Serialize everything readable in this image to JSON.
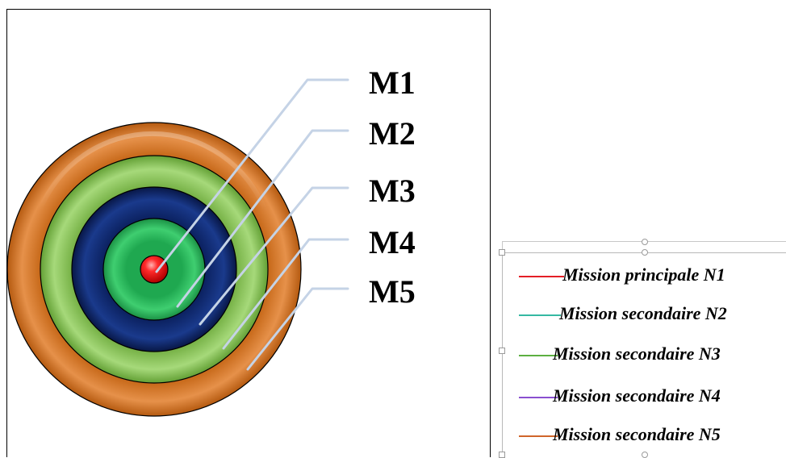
{
  "rings": [
    {
      "label": "M1",
      "color": "#e41e26",
      "name": "ring-m1"
    },
    {
      "label": "M2",
      "color": "#22a84c",
      "name": "ring-m2"
    },
    {
      "label": "M3",
      "color": "#0b2260",
      "name": "ring-m3"
    },
    {
      "label": "M4",
      "color": "#74b043",
      "name": "ring-m4"
    },
    {
      "label": "M5",
      "color": "#c4620f",
      "name": "ring-m5"
    }
  ],
  "legend": {
    "items": [
      {
        "label": "Mission principale N1",
        "color": "#e41e26"
      },
      {
        "label": "Mission secondaire N2",
        "color": "#35b9a2"
      },
      {
        "label": "Mission secondaire N3",
        "color": "#5cb041"
      },
      {
        "label": "Mission secondaire N4",
        "color": "#8a4fd0"
      },
      {
        "label": "Mission secondaire N5",
        "color": "#d0652a"
      }
    ]
  },
  "connector_color": "#c5d3e6"
}
